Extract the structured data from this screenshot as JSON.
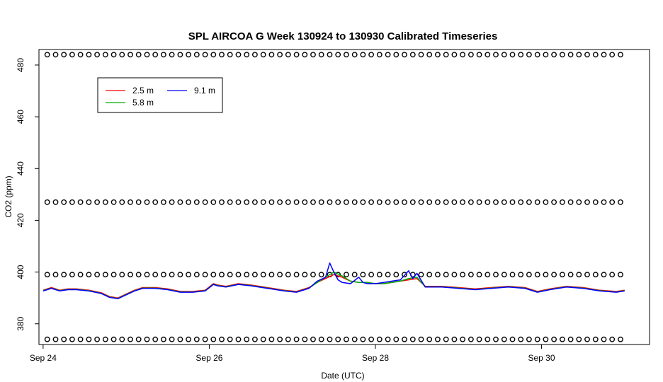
{
  "chart_data": {
    "type": "line",
    "title": "SPL AIRCOA G  Week 130924 to 130930  Calibrated Timeseries",
    "xlabel": "Date (UTC)",
    "ylabel": "CO2 (ppm)",
    "xlim": [
      -0.05,
      7.3
    ],
    "ylim": [
      372,
      486
    ],
    "x_ticks": [
      {
        "value": 0,
        "label": "Sep 24"
      },
      {
        "value": 2,
        "label": "Sep 26"
      },
      {
        "value": 4,
        "label": "Sep 28"
      },
      {
        "value": 6,
        "label": "Sep 30"
      }
    ],
    "y_ticks": [
      {
        "value": 380,
        "label": "380"
      },
      {
        "value": 400,
        "label": "400"
      },
      {
        "value": 420,
        "label": "420"
      },
      {
        "value": 440,
        "label": "440"
      },
      {
        "value": 460,
        "label": "460"
      },
      {
        "value": 480,
        "label": "480"
      }
    ],
    "legend": {
      "position": "top-left",
      "entries": [
        {
          "name": "2.5 m",
          "color": "#ff0000"
        },
        {
          "name": "5.8 m",
          "color": "#00aa00"
        },
        {
          "name": "9.1 m",
          "color": "#0000ff"
        }
      ]
    },
    "series": [
      {
        "name": "2.5 m",
        "color": "#ff0000",
        "x": [
          0,
          0.05,
          0.1,
          0.2,
          0.3,
          0.4,
          0.55,
          0.7,
          0.8,
          0.9,
          1.0,
          1.1,
          1.2,
          1.35,
          1.5,
          1.65,
          1.8,
          1.95,
          2.05,
          2.1,
          2.2,
          2.35,
          2.5,
          2.7,
          2.9,
          3.05,
          3.2,
          3.3,
          3.4,
          3.5,
          3.6,
          3.7,
          3.8,
          3.9,
          4.0,
          4.1,
          4.2,
          4.3,
          4.4,
          4.5,
          4.6,
          4.8,
          5.0,
          5.2,
          5.4,
          5.6,
          5.8,
          5.95,
          6.1,
          6.3,
          6.5,
          6.7,
          6.9,
          7.0
        ],
        "y": [
          393,
          393.5,
          394,
          393,
          393.5,
          393.5,
          393,
          392,
          390.5,
          390,
          391.5,
          393,
          394,
          394,
          393.5,
          392.5,
          392.5,
          393,
          395.5,
          395,
          394.5,
          395.5,
          395,
          394,
          393,
          392.5,
          394,
          396,
          397.5,
          399,
          398,
          396.5,
          396,
          396,
          395.5,
          395.5,
          396,
          396.5,
          397,
          397.5,
          394.5,
          394.5,
          394,
          393.5,
          394,
          394.5,
          394,
          392.5,
          393.5,
          394.5,
          394,
          393,
          392.5,
          393
        ]
      },
      {
        "name": "5.8 m",
        "color": "#00aa00",
        "x": [
          0,
          0.05,
          0.1,
          0.2,
          0.3,
          0.4,
          0.55,
          0.7,
          0.8,
          0.9,
          1.0,
          1.1,
          1.2,
          1.35,
          1.5,
          1.65,
          1.8,
          1.95,
          2.05,
          2.1,
          2.2,
          2.35,
          2.5,
          2.7,
          2.9,
          3.05,
          3.2,
          3.3,
          3.4,
          3.5,
          3.6,
          3.7,
          3.8,
          3.9,
          4.0,
          4.1,
          4.2,
          4.3,
          4.4,
          4.5,
          4.6,
          4.8,
          5.0,
          5.2,
          5.4,
          5.6,
          5.8,
          5.95,
          6.1,
          6.3,
          6.5,
          6.7,
          6.9,
          7.0
        ],
        "y": [
          392.8,
          393.3,
          393.8,
          392.8,
          393.3,
          393.3,
          392.8,
          391.8,
          390.3,
          389.8,
          391.3,
          392.8,
          393.8,
          393.8,
          393.3,
          392.3,
          392.3,
          392.8,
          395.3,
          394.8,
          394.3,
          395.3,
          394.8,
          393.8,
          392.8,
          392.3,
          393.8,
          396,
          398,
          400,
          398.5,
          396.5,
          396,
          396,
          395.5,
          395.5,
          396,
          396.5,
          397.5,
          398,
          394.3,
          394.3,
          393.8,
          393.3,
          393.8,
          394.3,
          393.8,
          392.3,
          393.3,
          394.3,
          393.8,
          392.8,
          392.3,
          392.8
        ]
      },
      {
        "name": "9.1 m",
        "color": "#0000ff",
        "x": [
          0,
          0.05,
          0.1,
          0.2,
          0.3,
          0.4,
          0.55,
          0.7,
          0.8,
          0.9,
          1.0,
          1.1,
          1.2,
          1.35,
          1.5,
          1.65,
          1.8,
          1.95,
          2.05,
          2.1,
          2.2,
          2.35,
          2.5,
          2.7,
          2.9,
          3.05,
          3.2,
          3.3,
          3.4,
          3.45,
          3.5,
          3.55,
          3.6,
          3.7,
          3.8,
          3.85,
          3.9,
          4.0,
          4.1,
          4.2,
          4.3,
          4.4,
          4.45,
          4.5,
          4.6,
          4.8,
          5.0,
          5.2,
          5.4,
          5.6,
          5.8,
          5.95,
          6.1,
          6.3,
          6.5,
          6.7,
          6.9,
          7.0
        ],
        "y": [
          392.7,
          393.2,
          393.7,
          392.7,
          393.2,
          393.2,
          392.7,
          391.7,
          390.2,
          389.7,
          391.2,
          392.7,
          393.7,
          393.7,
          393.2,
          392.2,
          392.2,
          392.7,
          395.2,
          394.7,
          394.2,
          395.2,
          394.7,
          393.7,
          392.7,
          392.2,
          393.7,
          396.5,
          398,
          403.5,
          400,
          397,
          396,
          395.5,
          398,
          396,
          395.5,
          395.5,
          396,
          396.5,
          397,
          400.5,
          397.5,
          399.5,
          394.2,
          394.2,
          393.7,
          393.2,
          393.7,
          394.2,
          393.7,
          392.2,
          393.2,
          394.2,
          393.7,
          392.7,
          392.2,
          392.7
        ]
      },
      {
        "name": "",
        "type": "scatter",
        "marker": "open-circle",
        "color": "#000000",
        "x": [
          0.05,
          7.0
        ],
        "y": [
          374,
          374
        ],
        "spacing_days": 0.1
      },
      {
        "name": "",
        "type": "scatter",
        "marker": "open-circle",
        "color": "#000000",
        "x": [
          0.05,
          7.0
        ],
        "y": [
          399,
          399
        ],
        "spacing_days": 0.1
      },
      {
        "name": "",
        "type": "scatter",
        "marker": "open-circle",
        "color": "#000000",
        "x": [
          0.05,
          7.0
        ],
        "y": [
          427,
          427
        ],
        "spacing_days": 0.1
      },
      {
        "name": "",
        "type": "scatter",
        "marker": "open-circle",
        "color": "#000000",
        "x": [
          0.05,
          7.0
        ],
        "y": [
          484,
          484
        ],
        "spacing_days": 0.1
      }
    ],
    "grid": false
  }
}
